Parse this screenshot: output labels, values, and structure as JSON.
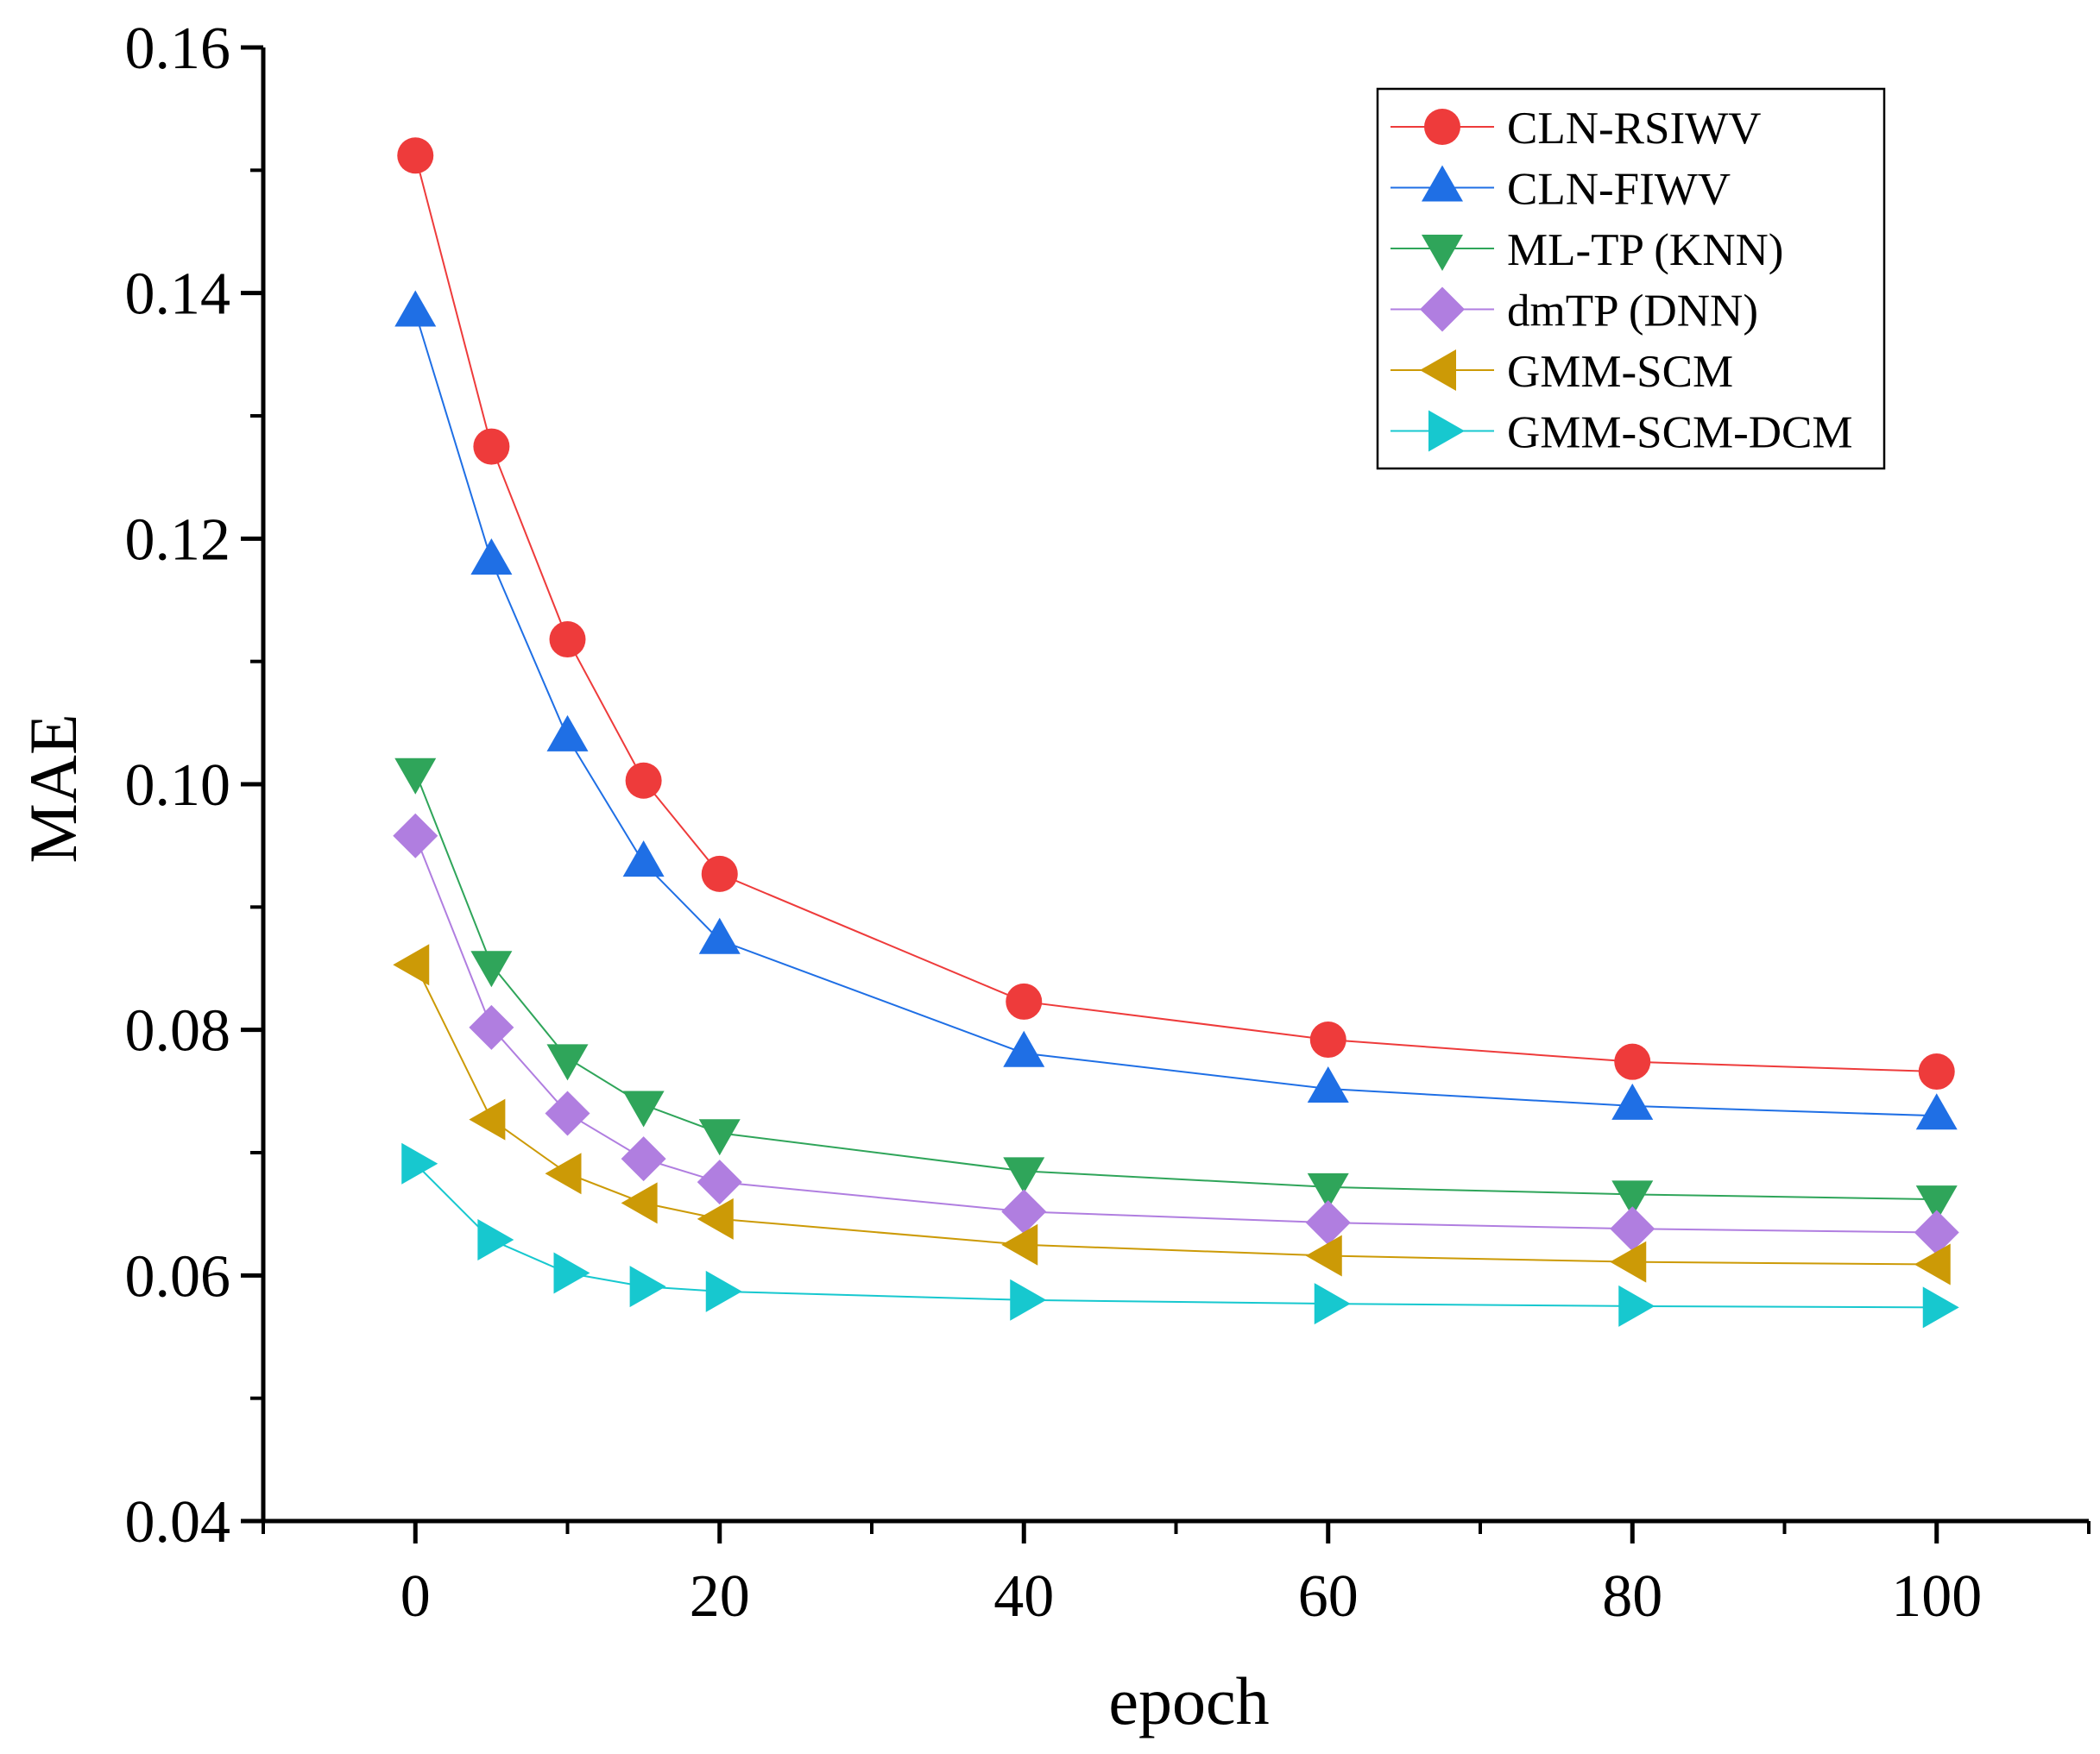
{
  "chart_data": {
    "type": "line",
    "title": "",
    "xlabel": "epoch",
    "ylabel": "MAE",
    "xlim": [
      -10,
      110
    ],
    "ylim": [
      0.04,
      0.16
    ],
    "x": [
      0,
      5,
      10,
      15,
      20,
      40,
      60,
      80,
      100
    ],
    "x_ticks": [
      0,
      20,
      40,
      60,
      80,
      100
    ],
    "x_tick_labels": [
      "0",
      "20",
      "40",
      "60",
      "80",
      "100"
    ],
    "y_ticks": [
      0.04,
      0.06,
      0.08,
      0.1,
      0.12,
      0.14,
      0.16
    ],
    "y_tick_labels": [
      "0.04",
      "0.06",
      "0.08",
      "0.10",
      "0.12",
      "0.14",
      "0.16"
    ],
    "grid": false,
    "legend_position": "top-right",
    "series": [
      {
        "name": "CLN-RSIWV",
        "color": "#ee3b3b",
        "marker": "circle",
        "values": [
          0.1512,
          0.1275,
          0.1118,
          0.1003,
          0.0927,
          0.0823,
          0.0792,
          0.0774,
          0.0766
        ]
      },
      {
        "name": "CLN-FIWV",
        "color": "#1f6fe5",
        "marker": "triangle-up",
        "values": [
          0.1384,
          0.1182,
          0.1038,
          0.0936,
          0.0873,
          0.0781,
          0.0752,
          0.0738,
          0.073
        ]
      },
      {
        "name": "ML-TP (KNN)",
        "color": "#2fa55a",
        "marker": "triangle-down",
        "values": [
          0.101,
          0.0853,
          0.0777,
          0.0739,
          0.0716,
          0.0685,
          0.0672,
          0.0666,
          0.0662
        ]
      },
      {
        "name": "dmTP (DNN)",
        "color": "#b07ee0",
        "marker": "diamond",
        "values": [
          0.0958,
          0.0802,
          0.0732,
          0.0695,
          0.0676,
          0.0652,
          0.0643,
          0.0638,
          0.0635
        ]
      },
      {
        "name": "GMM-SCM",
        "color": "#cc9a06",
        "marker": "triangle-left",
        "values": [
          0.0853,
          0.0727,
          0.0683,
          0.0659,
          0.0646,
          0.0625,
          0.0616,
          0.0611,
          0.0609
        ]
      },
      {
        "name": "GMM-SCM-DCM",
        "color": "#17c8cf",
        "marker": "triangle-right",
        "values": [
          0.0691,
          0.0629,
          0.0602,
          0.0591,
          0.0587,
          0.058,
          0.0577,
          0.0575,
          0.0574
        ]
      }
    ]
  }
}
